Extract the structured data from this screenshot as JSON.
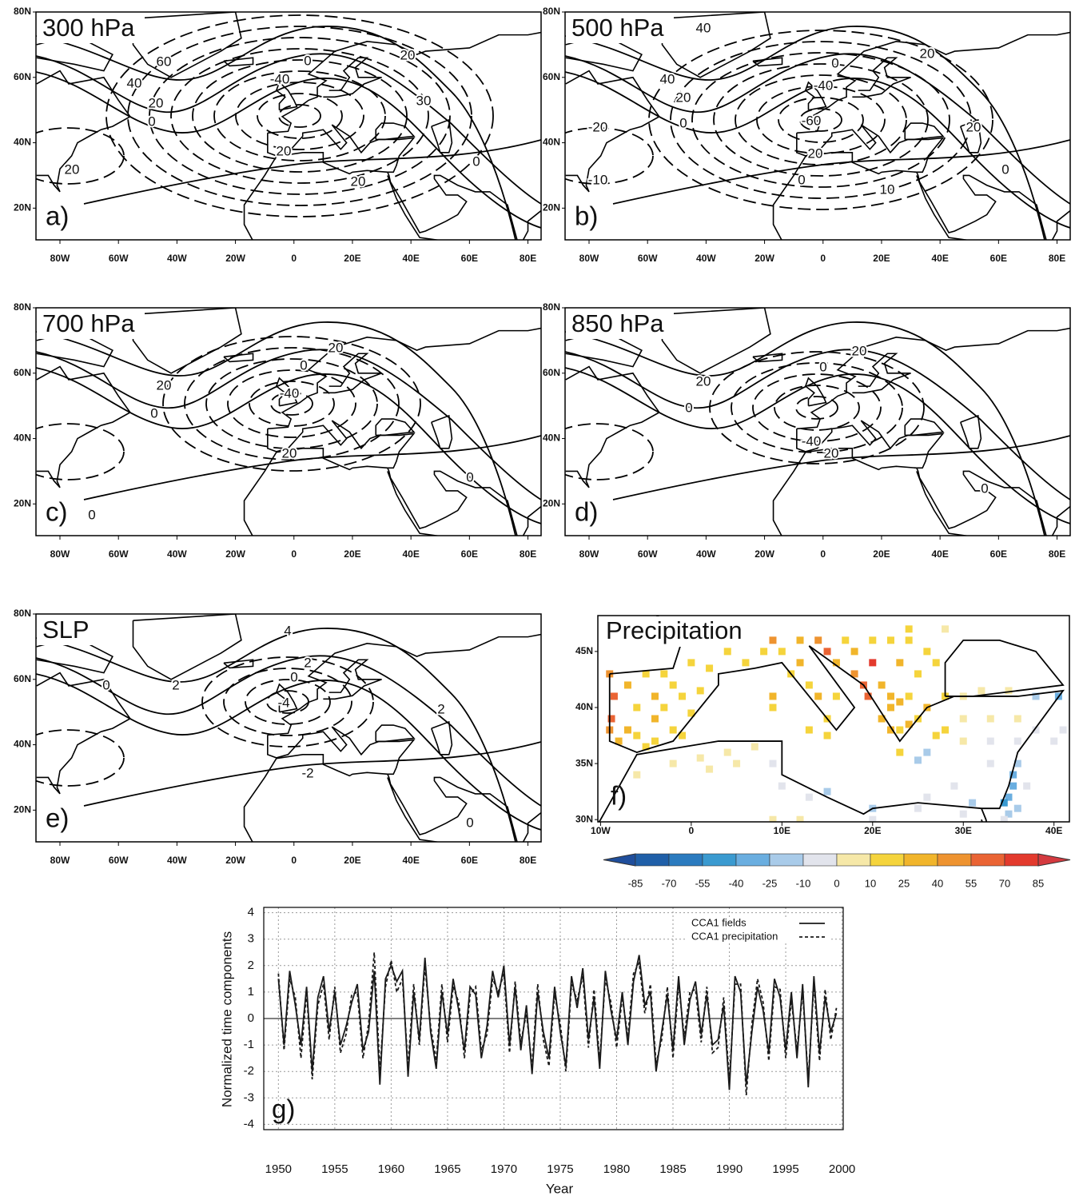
{
  "maps": [
    {
      "title": "300 hPa",
      "label": "a)",
      "contour_labels": [
        "60",
        "40",
        "20",
        "0",
        "0",
        "-40",
        "20",
        "30",
        "20",
        "20",
        "20",
        "0"
      ]
    },
    {
      "title": "500 hPa",
      "label": "b)",
      "contour_labels": [
        "40",
        "40",
        "20",
        "0",
        "0",
        "-40",
        "-60",
        "20",
        "-20",
        "20",
        "20",
        "-10",
        "0",
        "10",
        "0"
      ]
    },
    {
      "title": "700 hPa",
      "label": "c)",
      "contour_labels": [
        "20",
        "0",
        "-40",
        "20",
        "0",
        "20",
        "0",
        "0"
      ]
    },
    {
      "title": "850 hPa",
      "label": "d)",
      "contour_labels": [
        "20",
        "20",
        "0",
        "0",
        "-40",
        "20",
        "0"
      ]
    },
    {
      "title": "SLP",
      "label": "e)",
      "contour_labels": [
        "4",
        "2",
        "0",
        "-4",
        "2",
        "0",
        "2",
        "-2",
        "0"
      ]
    }
  ],
  "map_axes": {
    "lonlim": [
      -88.2,
      84.5
    ],
    "latlim": [
      10.3,
      80
    ],
    "lat_ticks": [
      {
        "value": 80,
        "label": "80N"
      },
      {
        "value": 60,
        "label": "60N"
      },
      {
        "value": 40,
        "label": "40N"
      },
      {
        "value": 20,
        "label": "20N"
      }
    ],
    "lon_ticks": [
      {
        "value": -80,
        "label": "80W"
      },
      {
        "value": -60,
        "label": "60W"
      },
      {
        "value": -40,
        "label": "40W"
      },
      {
        "value": -20,
        "label": "20W"
      },
      0,
      {
        "value": 20,
        "label": "20E"
      },
      {
        "value": 40,
        "label": "40E"
      },
      {
        "value": 60,
        "label": "60E"
      },
      {
        "value": 80,
        "label": "80E"
      }
    ]
  },
  "precip_map": {
    "title": "Precipitation",
    "label": "f)",
    "lonlim": [
      -10.3,
      41.7
    ],
    "latlim": [
      29.8,
      48.2
    ],
    "lat_ticks": [
      {
        "value": 30,
        "label": "30N"
      },
      {
        "value": 35,
        "label": "35N"
      },
      {
        "value": 40,
        "label": "40N"
      },
      {
        "value": 45,
        "label": "45N"
      }
    ],
    "lon_ticks": [
      {
        "value": -10,
        "label": "10W"
      },
      0,
      {
        "value": 10,
        "label": "10E"
      },
      {
        "value": 20,
        "label": "20E"
      },
      {
        "value": 30,
        "label": "30E"
      },
      {
        "value": 40,
        "label": "40E"
      }
    ],
    "stations": [
      [
        -9,
        43,
        45
      ],
      [
        -8.5,
        41,
        55
      ],
      [
        -8.8,
        39,
        60
      ],
      [
        -9,
        38,
        40
      ],
      [
        -7,
        42,
        25
      ],
      [
        -5,
        43,
        15
      ],
      [
        -3,
        43,
        20
      ],
      [
        -6,
        40,
        20
      ],
      [
        -4,
        41,
        25
      ],
      [
        -2,
        42,
        15
      ],
      [
        -1,
        41,
        20
      ],
      [
        -4,
        39,
        25
      ],
      [
        -2,
        38,
        15
      ],
      [
        -6,
        37.5,
        20
      ],
      [
        -4,
        37,
        10
      ],
      [
        -1,
        37.5,
        15
      ],
      [
        0,
        39.5,
        12
      ],
      [
        1,
        41.5,
        15
      ],
      [
        -3,
        40,
        18
      ],
      [
        -7,
        38,
        30
      ],
      [
        -5,
        36.5,
        12
      ],
      [
        -8,
        37,
        30
      ],
      [
        2,
        47,
        12
      ],
      [
        4,
        45,
        15
      ],
      [
        0,
        44,
        10
      ],
      [
        2,
        43.5,
        18
      ],
      [
        6,
        44,
        20
      ],
      [
        5,
        47,
        10
      ],
      [
        -1,
        46,
        12
      ],
      [
        7,
        47.5,
        8
      ],
      [
        3,
        46,
        14
      ],
      [
        -6,
        34,
        5
      ],
      [
        -2,
        35,
        8
      ],
      [
        1,
        35.5,
        6
      ],
      [
        4,
        36,
        5
      ],
      [
        7,
        36.5,
        5
      ],
      [
        9,
        35,
        -5
      ],
      [
        10,
        33,
        -3
      ],
      [
        13,
        32,
        -8
      ],
      [
        15,
        32.5,
        -20
      ],
      [
        20,
        31,
        -15
      ],
      [
        25,
        31,
        -8
      ],
      [
        30,
        30.5,
        -5
      ],
      [
        9,
        30,
        5
      ],
      [
        2,
        34.5,
        4
      ],
      [
        5,
        35,
        6
      ],
      [
        8,
        45,
        15
      ],
      [
        10,
        45,
        20
      ],
      [
        12,
        46,
        30
      ],
      [
        12,
        44,
        25
      ],
      [
        11,
        43,
        20
      ],
      [
        13,
        42,
        18
      ],
      [
        14,
        41,
        25
      ],
      [
        16,
        41,
        20
      ],
      [
        15,
        39,
        15
      ],
      [
        9,
        40,
        10
      ],
      [
        9,
        41,
        25
      ],
      [
        13,
        38,
        12
      ],
      [
        15,
        37.5,
        10
      ],
      [
        9,
        46,
        40
      ],
      [
        14,
        46,
        40
      ],
      [
        15,
        45,
        55
      ],
      [
        16,
        44,
        35
      ],
      [
        18,
        43,
        45
      ],
      [
        19,
        42,
        60
      ],
      [
        19.5,
        41,
        55
      ],
      [
        20,
        44,
        70
      ],
      [
        21,
        42,
        35
      ],
      [
        22,
        41,
        30
      ],
      [
        23,
        44,
        25
      ],
      [
        25,
        43,
        20
      ],
      [
        27,
        44,
        15
      ],
      [
        20,
        46,
        20
      ],
      [
        22,
        46,
        12
      ],
      [
        24,
        46,
        10
      ],
      [
        26,
        45,
        10
      ],
      [
        18,
        45,
        25
      ],
      [
        17,
        46,
        18
      ],
      [
        24,
        47,
        10
      ],
      [
        28,
        47,
        5
      ],
      [
        21,
        39,
        30
      ],
      [
        22,
        38,
        25
      ],
      [
        23,
        38,
        20
      ],
      [
        24,
        38.5,
        28
      ],
      [
        22,
        40,
        25
      ],
      [
        23,
        40.5,
        30
      ],
      [
        24,
        41,
        20
      ],
      [
        26,
        40,
        25
      ],
      [
        25,
        39,
        15
      ],
      [
        23,
        36,
        20
      ],
      [
        25,
        35.3,
        -25
      ],
      [
        26,
        36,
        -15
      ],
      [
        28,
        41,
        10
      ],
      [
        30,
        41,
        5
      ],
      [
        32,
        41.5,
        3
      ],
      [
        35,
        41.5,
        2
      ],
      [
        38,
        41,
        -25
      ],
      [
        40.5,
        41,
        -30
      ],
      [
        30,
        39,
        8
      ],
      [
        33,
        39,
        4
      ],
      [
        36,
        39,
        3
      ],
      [
        28,
        38,
        12
      ],
      [
        30,
        37,
        5
      ],
      [
        33,
        37,
        -5
      ],
      [
        36,
        37,
        -8
      ],
      [
        38,
        38,
        -5
      ],
      [
        40,
        37,
        -3
      ],
      [
        41,
        38,
        -2
      ],
      [
        27,
        37.5,
        10
      ],
      [
        35.5,
        34,
        -30
      ],
      [
        35.5,
        33,
        -40
      ],
      [
        35,
        32,
        -35
      ],
      [
        34.5,
        31.5,
        -45
      ],
      [
        35,
        30.5,
        -20
      ],
      [
        36,
        35,
        -15
      ],
      [
        34.5,
        30,
        -10
      ],
      [
        37,
        33,
        -5
      ],
      [
        36,
        31,
        -25
      ],
      [
        33,
        35,
        -8
      ],
      [
        29,
        33,
        -10
      ],
      [
        31,
        31.5,
        -12
      ],
      [
        26,
        32,
        -5
      ],
      [
        12,
        30,
        5
      ],
      [
        20,
        30,
        -5
      ]
    ]
  },
  "colorbar": {
    "levels": [
      -85,
      -70,
      -55,
      -40,
      -25,
      -10,
      0,
      10,
      25,
      40,
      55,
      70,
      85
    ],
    "colors": [
      "#1f4e9c",
      "#1f5fa8",
      "#2b7bbf",
      "#3a9ad0",
      "#6aaee0",
      "#a9cbe9",
      "#e2e4ec",
      "#f6e8a8",
      "#f5d43c",
      "#f1b52b",
      "#ee9330",
      "#ea6434",
      "#e33a2d",
      "#d43a3f"
    ]
  },
  "chart_data": {
    "type": "line",
    "label": "g)",
    "xlabel": "Year",
    "ylabel": "Normalized time components",
    "grid": true,
    "xlim": [
      1948.7,
      2000.1
    ],
    "ylim": [
      -4.2,
      4.2
    ],
    "xticks": [
      1950,
      1955,
      1960,
      1965,
      1970,
      1975,
      1980,
      1985,
      1990,
      1995,
      2000
    ],
    "yticks": [
      -4,
      -3,
      -2,
      -1,
      0,
      1,
      2,
      3,
      4
    ],
    "x": [
      1950,
      1950.5,
      1951,
      1951.5,
      1952,
      1952.5,
      1953,
      1953.5,
      1954,
      1954.5,
      1955,
      1955.5,
      1956,
      1956.5,
      1957,
      1957.5,
      1958,
      1958.5,
      1959,
      1959.5,
      1960,
      1960.5,
      1961,
      1961.5,
      1962,
      1962.5,
      1963,
      1963.5,
      1964,
      1964.5,
      1965,
      1965.5,
      1966,
      1966.5,
      1967,
      1967.5,
      1968,
      1968.5,
      1969,
      1969.5,
      1970,
      1970.5,
      1971,
      1971.5,
      1972,
      1972.5,
      1973,
      1973.5,
      1974,
      1974.5,
      1975,
      1975.5,
      1976,
      1976.5,
      1977,
      1977.5,
      1978,
      1978.5,
      1979,
      1979.5,
      1980,
      1980.5,
      1981,
      1981.5,
      1982,
      1982.5,
      1983,
      1983.5,
      1984,
      1984.5,
      1985,
      1985.5,
      1986,
      1986.5,
      1987,
      1987.5,
      1988,
      1988.5,
      1989,
      1989.5,
      1990,
      1990.5,
      1991,
      1991.5,
      1992,
      1992.5,
      1993,
      1993.5,
      1994,
      1994.5,
      1995,
      1995.5,
      1996,
      1996.5,
      1997,
      1997.5,
      1998,
      1998.5,
      1999,
      1999.5
    ],
    "series": [
      {
        "name": "CCA1 fields",
        "color": "#1a1a1a",
        "dash": "solid",
        "values": [
          1.5,
          -1.0,
          1.8,
          0.5,
          -1.0,
          1.2,
          -2.0,
          0.8,
          1.6,
          -0.5,
          1.0,
          -1.0,
          -0.3,
          0.6,
          1.3,
          -1.2,
          -0.5,
          1.8,
          -2.5,
          1.5,
          2.0,
          1.4,
          1.8,
          -2.2,
          1.0,
          -0.8,
          2.3,
          -0.5,
          -1.9,
          1.0,
          -0.6,
          1.5,
          0.3,
          -1.2,
          1.2,
          0.9,
          -1.5,
          -0.3,
          1.8,
          0.8,
          2.0,
          -1.0,
          1.2,
          -1.2,
          0.5,
          -2.1,
          1.0,
          -0.5,
          -1.5,
          1.2,
          -0.5,
          -1.8,
          1.6,
          0.4,
          1.9,
          -0.8,
          0.8,
          -1.9,
          1.8,
          0.3,
          -0.8,
          1.0,
          -1.0,
          1.4,
          2.4,
          0.5,
          1.0,
          -2.0,
          -0.5,
          0.9,
          -1.2,
          1.6,
          -1.0,
          0.7,
          1.4,
          -0.6,
          0.9,
          -1.0,
          -0.8,
          0.5,
          -2.7,
          1.6,
          1.0,
          -2.5,
          -0.5,
          1.2,
          0.3,
          -1.3,
          1.5,
          0.8,
          -1.2,
          1.0,
          -1.5,
          1.3,
          -2.6,
          1.6,
          -1.3,
          0.8,
          -0.5,
          0.2
        ]
      },
      {
        "name": "CCA1 precipitation",
        "color": "#1a1a1a",
        "dash": "dashed",
        "values": [
          1.7,
          -1.2,
          1.5,
          0.8,
          -1.5,
          1.0,
          -2.3,
          0.5,
          1.3,
          -0.8,
          1.2,
          -1.3,
          -0.6,
          0.9,
          1.0,
          -1.5,
          -0.2,
          2.5,
          -2.0,
          1.2,
          2.2,
          1.0,
          1.5,
          -1.8,
          1.3,
          -1.0,
          2.0,
          -0.3,
          -1.6,
          1.3,
          -0.9,
          1.2,
          0.6,
          -1.5,
          0.9,
          1.2,
          -1.2,
          -0.6,
          1.5,
          1.0,
          1.7,
          -1.3,
          1.4,
          -0.9,
          0.2,
          -1.8,
          1.3,
          -0.8,
          -1.8,
          0.9,
          -0.2,
          -2.0,
          1.3,
          0.7,
          1.6,
          -1.1,
          1.1,
          -1.6,
          1.5,
          0.6,
          -1.1,
          0.8,
          -0.7,
          1.7,
          2.1,
          0.2,
          1.3,
          -1.7,
          -0.8,
          1.2,
          -1.5,
          1.3,
          -0.7,
          1.0,
          1.1,
          -0.9,
          1.2,
          -1.3,
          -1.1,
          0.8,
          -2.4,
          1.3,
          1.3,
          -2.9,
          -0.2,
          1.5,
          0.6,
          -1.6,
          1.2,
          1.1,
          -1.5,
          0.7,
          -1.2,
          1.0,
          -2.3,
          1.3,
          -1.6,
          1.1,
          -0.8,
          0.4
        ]
      }
    ]
  }
}
